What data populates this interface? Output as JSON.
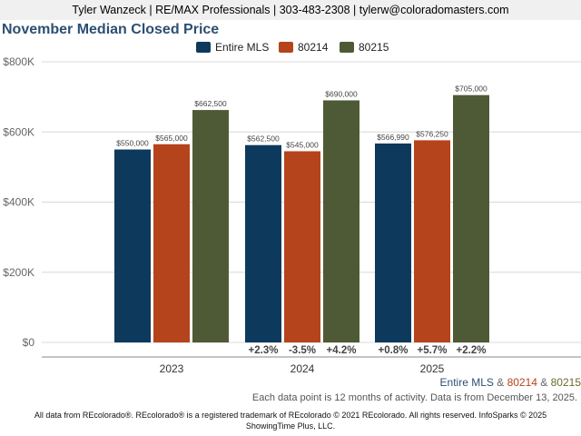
{
  "header": {
    "agent_line": "Tyler Wanzeck | RE/MAX Professionals | 303-483-2308 | tylerw@coloradomasters.com"
  },
  "colors": {
    "Entire MLS": "#0d3a5c",
    "80214": "#b5441c",
    "80215": "#4e5a35",
    "title": "#2c4f73"
  },
  "chart_data": {
    "type": "bar",
    "title": "November Median Closed Price",
    "xlabel": "",
    "ylabel": "",
    "ylim": [
      0,
      800000
    ],
    "y_ticks": [
      "$0",
      "$200K",
      "$400K",
      "$600K",
      "$800K"
    ],
    "grid": true,
    "legend_position": "top-center",
    "categories": [
      "2023",
      "2024",
      "2025"
    ],
    "series": [
      {
        "name": "Entire MLS",
        "values": [
          550000,
          562500,
          566990
        ],
        "labels": [
          "$550,000",
          "$562,500",
          "$566,990"
        ]
      },
      {
        "name": "80214",
        "values": [
          565000,
          545000,
          576250
        ],
        "labels": [
          "$565,000",
          "$545,000",
          "$576,250"
        ]
      },
      {
        "name": "80215",
        "values": [
          662500,
          690000,
          705000
        ],
        "labels": [
          "$662,500",
          "$690,000",
          "$705,000"
        ]
      }
    ],
    "changes": [
      [
        "",
        "",
        ""
      ],
      [
        "+2.3%",
        "-3.5%",
        "+4.2%"
      ],
      [
        "+0.8%",
        "+5.7%",
        "+2.2%"
      ]
    ]
  },
  "bottom_legend": {
    "entire": "Entire MLS",
    "sep1": " & ",
    "z1": "80214",
    "sep2": " & ",
    "z2": "80215"
  },
  "note": "Each data point is 12 months of activity. Data is from December 13, 2025.",
  "footer": {
    "line1": "All data from REcolorado®. REcolorado® is a registered trademark of REcolorado © 2021 REcolorado. All rights reserved. InfoSparks © 2025",
    "line2": "ShowingTime Plus, LLC."
  }
}
